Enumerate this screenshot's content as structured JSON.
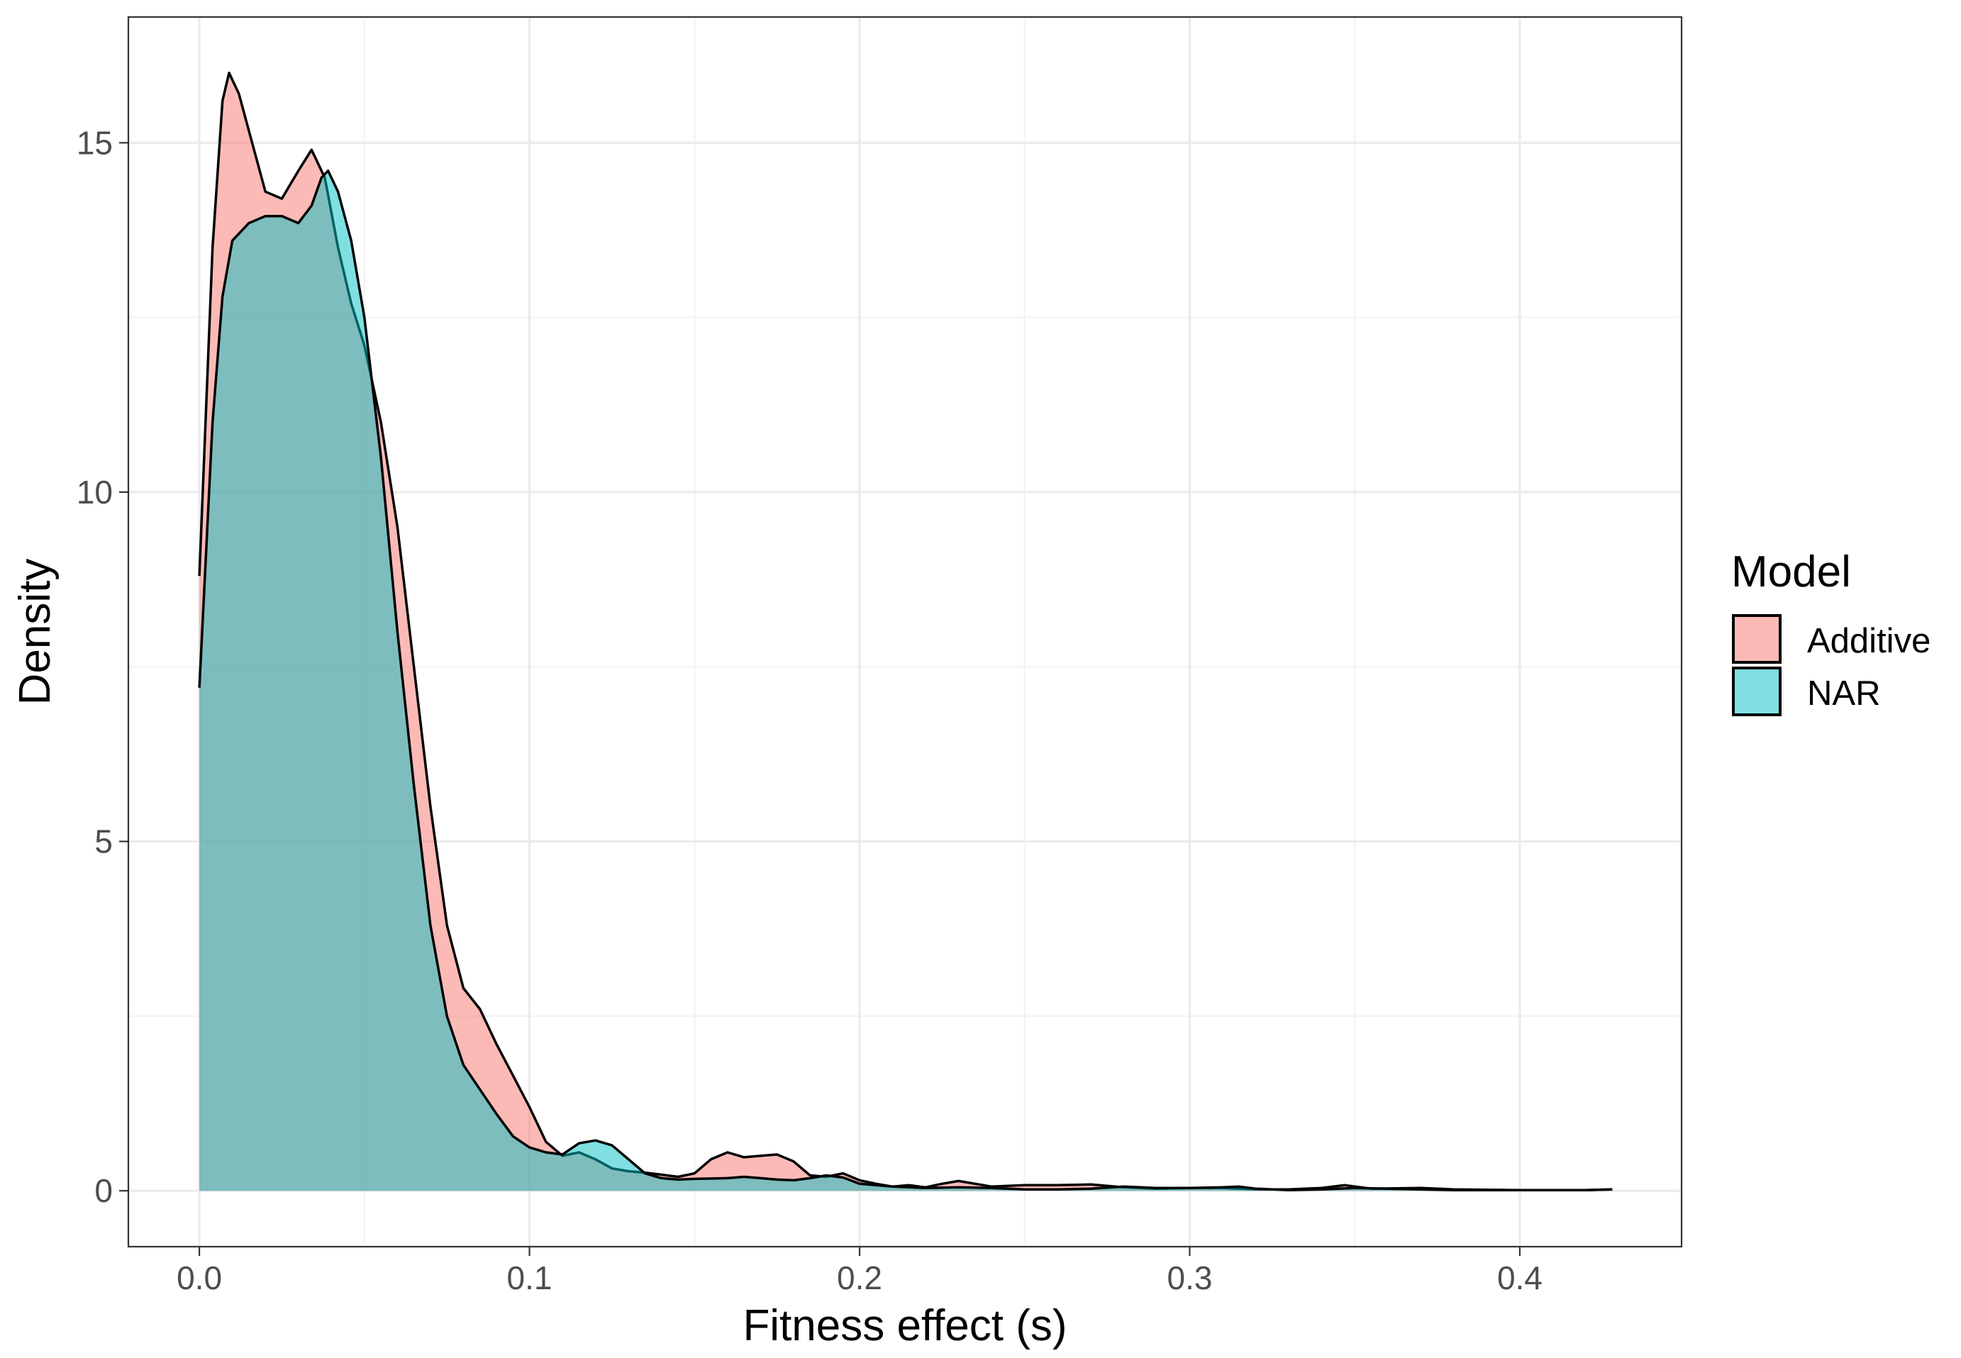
{
  "chart_data": {
    "type": "area",
    "xlabel": "Fitness effect (s)",
    "ylabel": "Density",
    "xlim": [
      -0.0215,
      0.449
    ],
    "ylim": [
      -0.8,
      16.8
    ],
    "x_ticks": [
      0.0,
      0.1,
      0.2,
      0.3,
      0.4
    ],
    "x_tick_labels": [
      "0.0",
      "0.1",
      "0.2",
      "0.3",
      "0.4"
    ],
    "y_ticks": [
      0,
      5,
      10,
      15
    ],
    "y_tick_labels": [
      "0",
      "5",
      "10",
      "15"
    ],
    "grid": true,
    "legend": {
      "title": "Model",
      "position": "right"
    },
    "series": [
      {
        "name": "Additive",
        "color": "#F8766D",
        "points": [
          [
            0.0,
            8.8
          ],
          [
            0.004,
            13.5
          ],
          [
            0.007,
            15.6
          ],
          [
            0.009,
            16.0
          ],
          [
            0.012,
            15.7
          ],
          [
            0.016,
            15.0
          ],
          [
            0.02,
            14.3
          ],
          [
            0.025,
            14.2
          ],
          [
            0.03,
            14.6
          ],
          [
            0.034,
            14.9
          ],
          [
            0.038,
            14.5
          ],
          [
            0.042,
            13.5
          ],
          [
            0.046,
            12.7
          ],
          [
            0.05,
            12.1
          ],
          [
            0.055,
            11.0
          ],
          [
            0.06,
            9.5
          ],
          [
            0.065,
            7.5
          ],
          [
            0.07,
            5.5
          ],
          [
            0.075,
            3.8
          ],
          [
            0.08,
            2.9
          ],
          [
            0.085,
            2.6
          ],
          [
            0.09,
            2.1
          ],
          [
            0.095,
            1.65
          ],
          [
            0.1,
            1.2
          ],
          [
            0.105,
            0.7
          ],
          [
            0.11,
            0.5
          ],
          [
            0.115,
            0.55
          ],
          [
            0.12,
            0.45
          ],
          [
            0.125,
            0.32
          ],
          [
            0.13,
            0.28
          ],
          [
            0.135,
            0.26
          ],
          [
            0.14,
            0.23
          ],
          [
            0.145,
            0.2
          ],
          [
            0.15,
            0.25
          ],
          [
            0.155,
            0.45
          ],
          [
            0.16,
            0.55
          ],
          [
            0.165,
            0.48
          ],
          [
            0.17,
            0.5
          ],
          [
            0.175,
            0.52
          ],
          [
            0.18,
            0.42
          ],
          [
            0.185,
            0.22
          ],
          [
            0.19,
            0.2
          ],
          [
            0.195,
            0.25
          ],
          [
            0.2,
            0.15
          ],
          [
            0.205,
            0.1
          ],
          [
            0.21,
            0.06
          ],
          [
            0.215,
            0.08
          ],
          [
            0.22,
            0.05
          ],
          [
            0.225,
            0.1
          ],
          [
            0.23,
            0.14
          ],
          [
            0.235,
            0.1
          ],
          [
            0.24,
            0.06
          ],
          [
            0.25,
            0.08
          ],
          [
            0.26,
            0.08
          ],
          [
            0.27,
            0.09
          ],
          [
            0.28,
            0.05
          ],
          [
            0.29,
            0.03
          ],
          [
            0.3,
            0.04
          ],
          [
            0.31,
            0.04
          ],
          [
            0.32,
            0.02
          ],
          [
            0.33,
            0.02
          ],
          [
            0.34,
            0.04
          ],
          [
            0.347,
            0.08
          ],
          [
            0.355,
            0.03
          ],
          [
            0.37,
            0.04
          ],
          [
            0.38,
            0.02
          ],
          [
            0.4,
            0.01
          ],
          [
            0.42,
            0.01
          ],
          [
            0.428,
            0.02
          ]
        ]
      },
      {
        "name": "NAR",
        "color": "#00BFC4",
        "points": [
          [
            0.0,
            7.2
          ],
          [
            0.004,
            11.0
          ],
          [
            0.007,
            12.8
          ],
          [
            0.01,
            13.6
          ],
          [
            0.015,
            13.85
          ],
          [
            0.02,
            13.95
          ],
          [
            0.025,
            13.95
          ],
          [
            0.03,
            13.85
          ],
          [
            0.034,
            14.1
          ],
          [
            0.037,
            14.5
          ],
          [
            0.039,
            14.6
          ],
          [
            0.042,
            14.3
          ],
          [
            0.046,
            13.6
          ],
          [
            0.05,
            12.5
          ],
          [
            0.055,
            10.5
          ],
          [
            0.06,
            8.0
          ],
          [
            0.065,
            5.8
          ],
          [
            0.07,
            3.8
          ],
          [
            0.075,
            2.5
          ],
          [
            0.08,
            1.8
          ],
          [
            0.085,
            1.45
          ],
          [
            0.09,
            1.1
          ],
          [
            0.095,
            0.78
          ],
          [
            0.1,
            0.62
          ],
          [
            0.105,
            0.55
          ],
          [
            0.11,
            0.52
          ],
          [
            0.115,
            0.68
          ],
          [
            0.12,
            0.72
          ],
          [
            0.125,
            0.65
          ],
          [
            0.13,
            0.45
          ],
          [
            0.135,
            0.25
          ],
          [
            0.14,
            0.18
          ],
          [
            0.145,
            0.16
          ],
          [
            0.15,
            0.17
          ],
          [
            0.16,
            0.18
          ],
          [
            0.165,
            0.2
          ],
          [
            0.17,
            0.18
          ],
          [
            0.175,
            0.16
          ],
          [
            0.18,
            0.15
          ],
          [
            0.185,
            0.18
          ],
          [
            0.19,
            0.22
          ],
          [
            0.195,
            0.19
          ],
          [
            0.2,
            0.1
          ],
          [
            0.21,
            0.06
          ],
          [
            0.22,
            0.04
          ],
          [
            0.23,
            0.05
          ],
          [
            0.24,
            0.04
          ],
          [
            0.25,
            0.02
          ],
          [
            0.26,
            0.02
          ],
          [
            0.27,
            0.03
          ],
          [
            0.28,
            0.06
          ],
          [
            0.29,
            0.04
          ],
          [
            0.3,
            0.04
          ],
          [
            0.31,
            0.05
          ],
          [
            0.315,
            0.06
          ],
          [
            0.32,
            0.03
          ],
          [
            0.33,
            0.01
          ],
          [
            0.34,
            0.02
          ],
          [
            0.35,
            0.04
          ],
          [
            0.36,
            0.03
          ],
          [
            0.37,
            0.02
          ],
          [
            0.38,
            0.01
          ],
          [
            0.4,
            0.01
          ],
          [
            0.42,
            0.01
          ],
          [
            0.428,
            0.02
          ]
        ]
      }
    ]
  }
}
